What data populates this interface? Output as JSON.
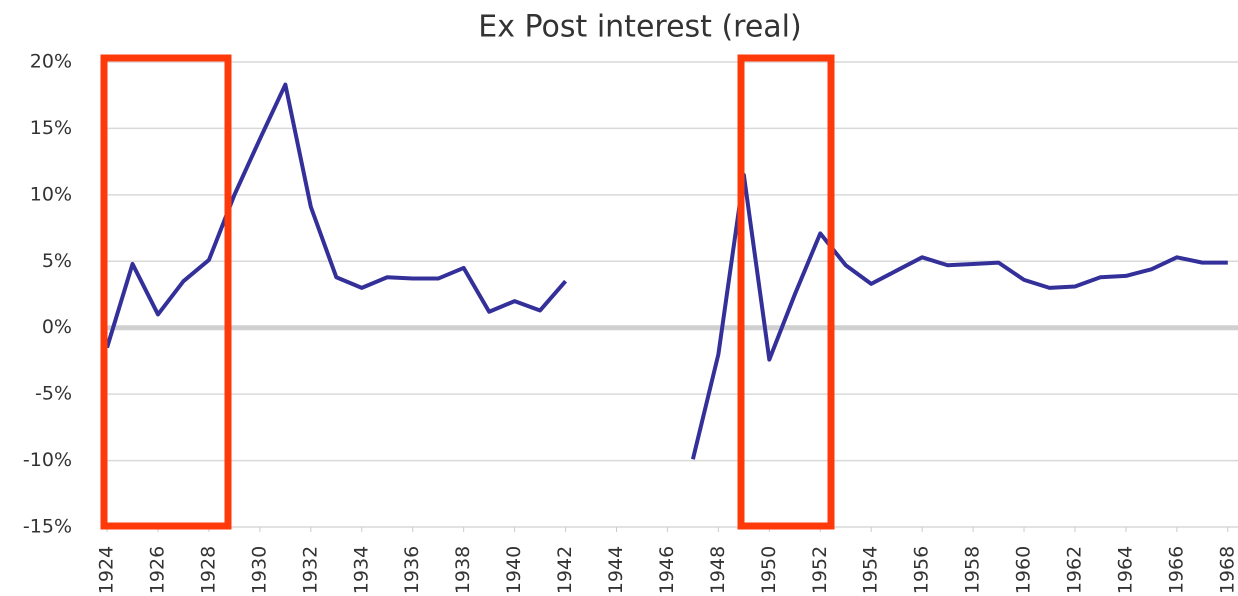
{
  "chart_data": {
    "type": "line",
    "title": "Ex Post interest (real)",
    "x": [
      1924,
      1925,
      1926,
      1927,
      1928,
      1929,
      1930,
      1931,
      1932,
      1933,
      1934,
      1935,
      1936,
      1937,
      1938,
      1939,
      1940,
      1941,
      1942,
      1943,
      1944,
      1945,
      1946,
      1947,
      1948,
      1949,
      1950,
      1951,
      1952,
      1953,
      1954,
      1955,
      1956,
      1957,
      1958,
      1959,
      1960,
      1961,
      1962,
      1963,
      1964,
      1965,
      1966,
      1967,
      1968
    ],
    "series": [
      {
        "color": "#34309a",
        "values": [
          -1.5,
          4.8,
          1.0,
          3.5,
          5.1,
          10.0,
          14.2,
          18.3,
          9.1,
          3.8,
          3.0,
          3.8,
          3.7,
          3.7,
          4.5,
          1.2,
          2.0,
          1.3,
          3.5,
          null,
          null,
          null,
          null,
          -9.9,
          -2.0,
          11.5,
          -2.4,
          2.5,
          7.1,
          4.7,
          3.3,
          4.3,
          5.3,
          4.7,
          4.8,
          4.9,
          3.6,
          3.0,
          3.1,
          3.8,
          3.9,
          4.4,
          5.3,
          4.9,
          4.9
        ]
      }
    ],
    "xlim": [
      1923.9,
      1968.4
    ],
    "xticks": [
      1924,
      1926,
      1928,
      1930,
      1932,
      1934,
      1936,
      1938,
      1940,
      1942,
      1944,
      1946,
      1948,
      1950,
      1952,
      1954,
      1956,
      1958,
      1960,
      1962,
      1964,
      1966,
      1968
    ],
    "ylim": [
      -15,
      20
    ],
    "yticks": [
      {
        "value": -15,
        "label": "-15%"
      },
      {
        "value": -10,
        "label": "-10%"
      },
      {
        "value": -5,
        "label": "-5%"
      },
      {
        "value": 0,
        "label": "0%"
      },
      {
        "value": 5,
        "label": "5%"
      },
      {
        "value": 10,
        "label": "10%"
      },
      {
        "value": 15,
        "label": "15%"
      },
      {
        "value": 20,
        "label": "20%"
      }
    ],
    "grid": true
  }
}
